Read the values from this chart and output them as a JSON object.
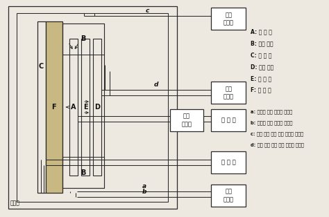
{
  "background_color": "#ede8e0",
  "sample_color": "#c8b882",
  "line_color": "#2a2a2a",
  "box_fc": "#ffffff",
  "text_color": "#111111",
  "legend_A": "A: 주 열 판",
  "legend_B": "B: 보호 열판",
  "legend_C": "C: 저 열 판",
  "legend_D": "D: 보조 열판",
  "legend_E": "E: 보 온 판",
  "legend_F": "F: 시 험 체",
  "legend_a": "a: 고온면 온조 측정용 열전대",
  "legend_b": "b: 저온면 온도 측정용 열전대",
  "legend_c": "c: 보호 열판 온도 편차 측정용 열전대",
  "legend_d": "d: 보조 열판 온도 편차 측정용 열전대",
  "box_ctrl1": "온도\n조절기",
  "box_ctrl2": "온도\n조절기",
  "box_power": "전력\n측정기",
  "box_hot": "고 열 원",
  "box_cold": "저 열 원",
  "box_temp": "온도\n측정기",
  "label_ref": "망온조"
}
